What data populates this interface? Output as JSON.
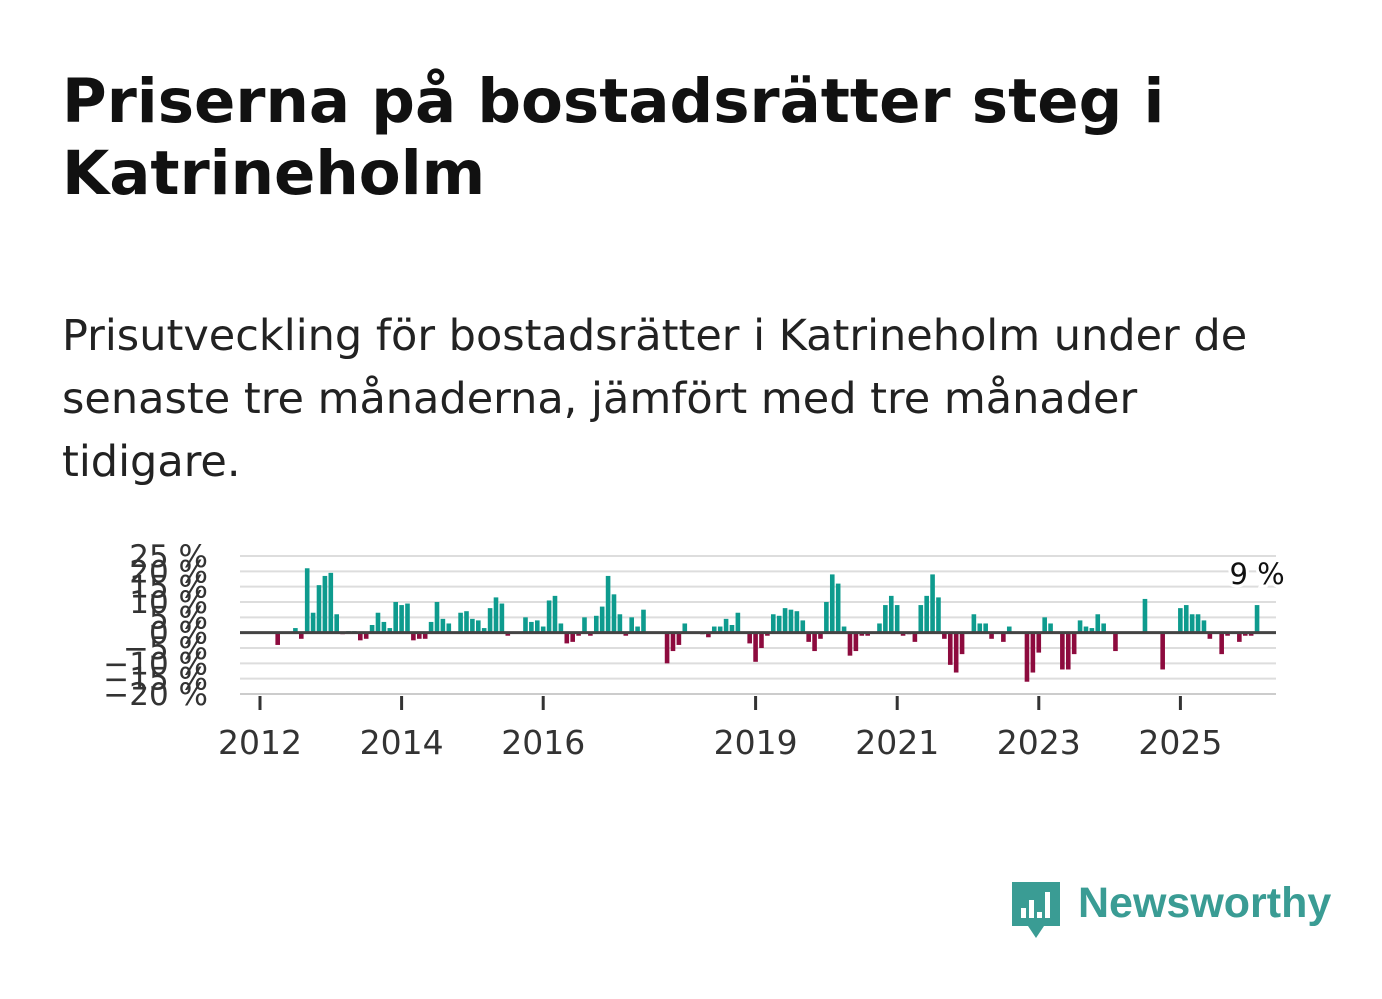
{
  "header": {
    "title": "Priserna på bostadsrätter steg i Katrineholm",
    "subtitle": "Prisutveckling för bostadsrätter i Katrineholm under de senaste tre månaderna, jämfört med tre månader tidigare."
  },
  "brand": {
    "name": "Newsworthy",
    "color": "#3a9c94"
  },
  "colors": {
    "positive": "#0e9b8e",
    "negative": "#8d0b3e",
    "grid": "#dddddd",
    "zero": "#444444"
  },
  "chart_data": {
    "type": "bar",
    "title": "Priserna på bostadsrätter steg i Katrineholm",
    "ylabel": "",
    "xlabel": "",
    "ylim": [
      -20,
      25
    ],
    "y_ticks": [
      25,
      20,
      15,
      10,
      5,
      0,
      -5,
      -10,
      -15,
      -20
    ],
    "y_tick_labels": [
      "25 %",
      "20 %",
      "15 %",
      "10 %",
      "5 %",
      "0 %",
      "−5 %",
      "−10 %",
      "−15 %",
      "−20 %"
    ],
    "x_tick_labels": [
      "2012",
      "2014",
      "2016",
      "2019",
      "2021",
      "2023",
      "2025"
    ],
    "x_tick_positions": [
      2012.0,
      2014.0,
      2016.0,
      2019.0,
      2021.0,
      2023.0,
      2025.0
    ],
    "start": 2011.75,
    "step": 0.08333,
    "end_label": "9 %",
    "values": [
      0,
      0,
      0,
      0,
      0,
      0,
      -4,
      0,
      0,
      1.5,
      -2,
      21,
      6.5,
      15.5,
      18.5,
      19.5,
      6,
      -0.5,
      0.5,
      0.5,
      -2.5,
      -2,
      2.5,
      6.5,
      3.5,
      1.5,
      10,
      9,
      9.5,
      -2.5,
      -2,
      -2,
      3.5,
      10,
      4.5,
      3,
      0,
      6.5,
      7,
      4.5,
      4,
      1.5,
      8,
      11.5,
      9.5,
      -1,
      0,
      0,
      5,
      3.5,
      4,
      2,
      10.5,
      12,
      3,
      -3.5,
      -3,
      -1,
      5,
      -1,
      5.5,
      8.5,
      18.5,
      12.5,
      6,
      -1,
      5,
      2,
      7.5,
      0,
      0,
      0,
      -10,
      -6,
      -4,
      3,
      0,
      0,
      -0.5,
      -1.5,
      2,
      2,
      4.5,
      2.5,
      6.5,
      0,
      -3.5,
      -9.5,
      -5,
      -1,
      6,
      5.5,
      8,
      7.5,
      7,
      4,
      -3,
      -6,
      -2,
      10,
      19,
      16,
      2,
      -7.5,
      -6,
      -1,
      -1,
      0,
      3,
      9,
      12,
      9,
      -1,
      -0.5,
      -3,
      9,
      12,
      19,
      11.5,
      -2,
      -10.5,
      -13,
      -7,
      0,
      6,
      3,
      3,
      -2,
      0,
      -3,
      2,
      0,
      0,
      -16,
      -13,
      -6.5,
      5,
      3,
      0,
      -12,
      -12,
      -7,
      4,
      2,
      1.5,
      6,
      3,
      0,
      -6,
      0,
      0,
      0,
      0,
      11,
      0,
      0,
      -12,
      0,
      0,
      8,
      9,
      6,
      6,
      4,
      -2,
      0,
      -7,
      -1,
      0,
      -3,
      -1,
      -1,
      9
    ]
  }
}
